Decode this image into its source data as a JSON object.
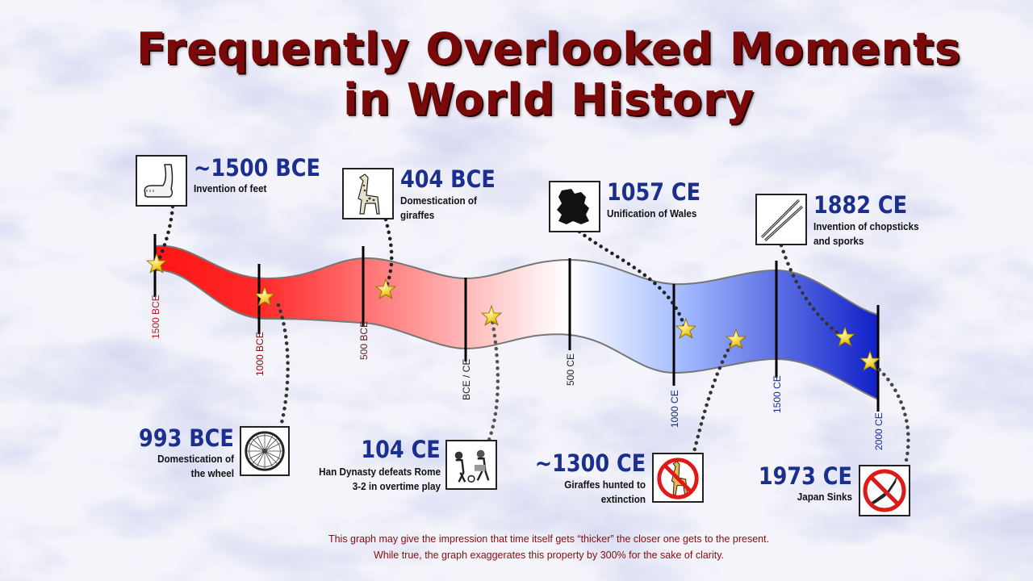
{
  "title": {
    "line1": "Frequently Overlooked Moments",
    "line2": "in World History"
  },
  "timeline": {
    "ticks": [
      {
        "label": "1500 BCE",
        "color": "#b71c1c"
      },
      {
        "label": "1000 BCE",
        "color": "#8a0b0b"
      },
      {
        "label": "500 BCE",
        "color": "#5a1a1a"
      },
      {
        "label": "BCE / CE",
        "color": "#222222"
      },
      {
        "label": "500 CE",
        "color": "#222222"
      },
      {
        "label": "1000 CE",
        "color": "#1a2a6a"
      },
      {
        "label": "1500 CE",
        "color": "#1a2a8a"
      },
      {
        "label": "2000 CE",
        "color": "#1a2a9a"
      }
    ],
    "gradient": [
      "#ff1a1a",
      "#ffffff",
      "#1a36d9"
    ]
  },
  "events": [
    {
      "date": "~1500 BCE",
      "description": "Invention of feet",
      "icon": "foot-icon"
    },
    {
      "date": "993 BCE",
      "description": "Domestication of the wheel",
      "icon": "wheel-icon"
    },
    {
      "date": "404 BCE",
      "description": "Domestication of giraffes",
      "icon": "giraffe-icon"
    },
    {
      "date": "104 CE",
      "description": "Han Dynasty defeats Rome 3-2 in overtime play",
      "icon": "soccer-icon"
    },
    {
      "date": "1057 CE",
      "description": "Unification of Wales",
      "icon": "wales-map-icon"
    },
    {
      "date": "~1300 CE",
      "description": "Giraffes hunted to extinction",
      "icon": "no-giraffe-icon"
    },
    {
      "date": "1882 CE",
      "description": "Invention of chopsticks and sporks",
      "icon": "chopsticks-icon"
    },
    {
      "date": "1973 CE",
      "description": "Japan Sinks",
      "icon": "no-japan-icon"
    }
  ],
  "footer": {
    "line1": "This graph may give the impression that time itself gets “thicker” the closer one gets to the present.",
    "line2": "While true, the graph exaggerates this property by 300% for the sake of clarity."
  }
}
